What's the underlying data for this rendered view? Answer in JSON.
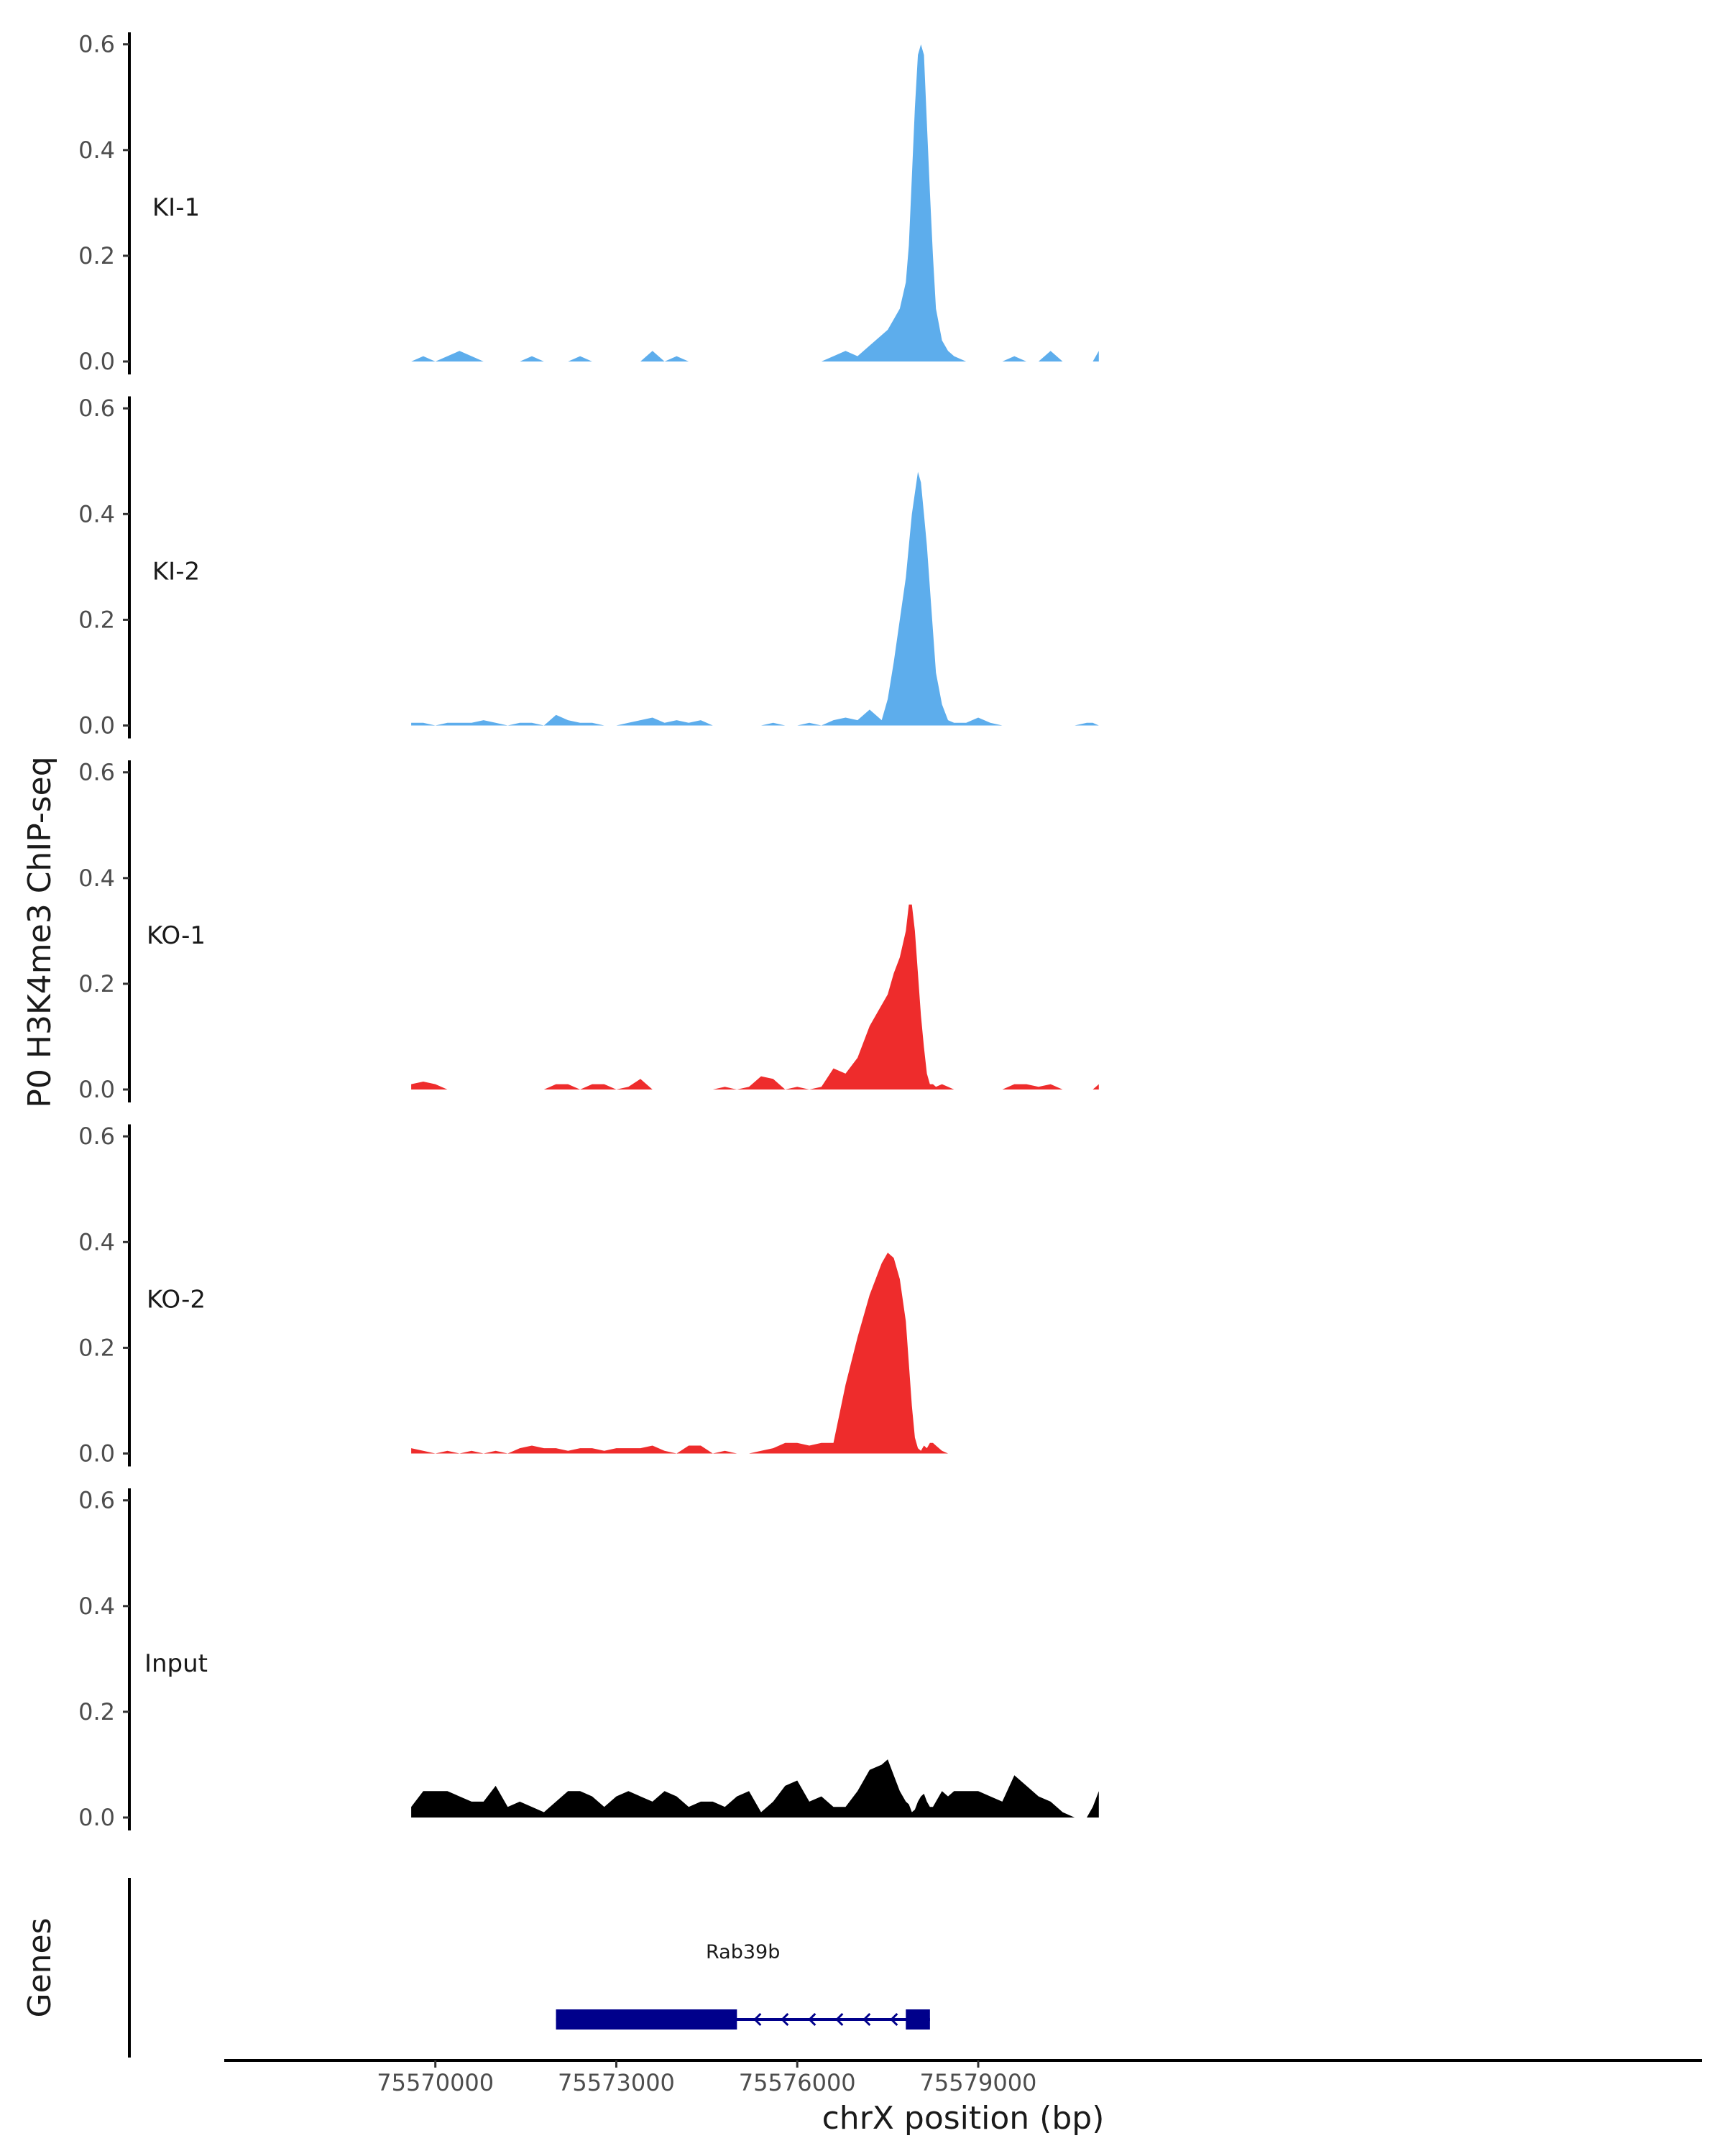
{
  "chart_data": {
    "type": "area",
    "ylabel": "P0 H3K4me3 ChIP-seq",
    "xlabel": "chrX position (bp)",
    "xlim": [
      75566500,
      75591000
    ],
    "x_ticks": [
      75570000,
      75573000,
      75576000,
      75579000
    ],
    "x_tick_labels": [
      "75570000",
      "75573000",
      "75576000",
      "75579000"
    ],
    "ylim": [
      0,
      0.62
    ],
    "y_ticks": [
      0.0,
      0.2,
      0.4,
      0.6
    ],
    "y_tick_labels": [
      "0.0",
      "0.2",
      "0.4",
      "0.6"
    ],
    "genes_label": "Genes",
    "gene": {
      "name": "Rab39b",
      "start": 75572000,
      "end": 75578200,
      "strand": "-",
      "exons": [
        [
          75572000,
          75575000
        ],
        [
          75577800,
          75578200
        ]
      ],
      "color": "#00008B"
    },
    "series": [
      {
        "name": "KI-1",
        "color": "#5DADEC",
        "x": [
          75569600,
          75569800,
          75570000,
          75570200,
          75570400,
          75570600,
          75570800,
          75571000,
          75571200,
          75571400,
          75571600,
          75571800,
          75572000,
          75572200,
          75572400,
          75572600,
          75572800,
          75573000,
          75573200,
          75573400,
          75573600,
          75573800,
          75574000,
          75574200,
          75574400,
          75574600,
          75574800,
          75575000,
          75575200,
          75575400,
          75575600,
          75575800,
          75576000,
          75576200,
          75576400,
          75576600,
          75576800,
          75577000,
          75577200,
          75577400,
          75577500,
          75577600,
          75577700,
          75577800,
          75577850,
          75577900,
          75577950,
          75578000,
          75578050,
          75578100,
          75578150,
          75578200,
          75578250,
          75578300,
          75578400,
          75578500,
          75578600,
          75578800,
          75579000,
          75579200,
          75579400,
          75579600,
          75579800,
          75580000,
          75580200,
          75580400,
          75580600,
          75580800,
          75580900,
          75581000
        ],
        "values": [
          0,
          0.01,
          0,
          0.01,
          0.02,
          0.01,
          0,
          0,
          0,
          0,
          0.01,
          0,
          0,
          0,
          0.01,
          0,
          0,
          0,
          0,
          0,
          0.02,
          0,
          0.01,
          0,
          0,
          0,
          0,
          0,
          0,
          0,
          0,
          0,
          0,
          0,
          0,
          0.01,
          0.02,
          0.01,
          0.03,
          0.05,
          0.06,
          0.08,
          0.1,
          0.15,
          0.22,
          0.35,
          0.48,
          0.58,
          0.6,
          0.58,
          0.45,
          0.32,
          0.2,
          0.1,
          0.04,
          0.02,
          0.01,
          0,
          0,
          0,
          0,
          0.01,
          0,
          0,
          0.02,
          0,
          0,
          0,
          0,
          0.02
        ]
      },
      {
        "name": "KI-2",
        "color": "#5DADEC",
        "x": [
          75569600,
          75569800,
          75570000,
          75570200,
          75570400,
          75570600,
          75570800,
          75571000,
          75571200,
          75571400,
          75571600,
          75571800,
          75572000,
          75572200,
          75572400,
          75572600,
          75572800,
          75573000,
          75573200,
          75573400,
          75573600,
          75573800,
          75574000,
          75574200,
          75574400,
          75574600,
          75574800,
          75575000,
          75575200,
          75575400,
          75575600,
          75575800,
          75576000,
          75576200,
          75576400,
          75576600,
          75576800,
          75577000,
          75577200,
          75577400,
          75577500,
          75577600,
          75577700,
          75577800,
          75577850,
          75577900,
          75577950,
          75578000,
          75578050,
          75578100,
          75578150,
          75578200,
          75578250,
          75578300,
          75578400,
          75578500,
          75578600,
          75578800,
          75579000,
          75579200,
          75579400,
          75579600,
          75579800,
          75580000,
          75580200,
          75580400,
          75580600,
          75580800,
          75580900,
          75581000
        ],
        "values": [
          0.005,
          0.005,
          0,
          0.005,
          0.005,
          0.005,
          0.01,
          0.005,
          0,
          0.005,
          0.005,
          0,
          0.02,
          0.01,
          0.005,
          0.005,
          0,
          0,
          0.005,
          0.01,
          0.015,
          0.005,
          0.01,
          0.005,
          0.01,
          0,
          0,
          0,
          0,
          0,
          0.005,
          0,
          0,
          0.005,
          0,
          0.01,
          0.015,
          0.01,
          0.03,
          0.01,
          0.05,
          0.12,
          0.2,
          0.28,
          0.34,
          0.4,
          0.44,
          0.48,
          0.46,
          0.4,
          0.34,
          0.26,
          0.18,
          0.1,
          0.04,
          0.01,
          0.005,
          0.005,
          0.015,
          0.005,
          0,
          0,
          0,
          0,
          0,
          0,
          0,
          0.005,
          0.005,
          0
        ]
      },
      {
        "name": "KO-1",
        "color": "#EE2C2C",
        "x": [
          75569600,
          75569800,
          75570000,
          75570200,
          75570400,
          75570600,
          75570800,
          75571000,
          75571200,
          75571400,
          75571600,
          75571800,
          75572000,
          75572200,
          75572400,
          75572600,
          75572800,
          75573000,
          75573200,
          75573400,
          75573600,
          75573800,
          75574000,
          75574200,
          75574400,
          75574600,
          75574800,
          75575000,
          75575200,
          75575400,
          75575600,
          75575800,
          75576000,
          75576200,
          75576400,
          75576600,
          75576800,
          75577000,
          75577200,
          75577400,
          75577500,
          75577600,
          75577700,
          75577800,
          75577850,
          75577900,
          75577950,
          75578000,
          75578050,
          75578100,
          75578150,
          75578200,
          75578250,
          75578300,
          75578400,
          75578500,
          75578600,
          75578800,
          75579000,
          75579200,
          75579400,
          75579600,
          75579800,
          75580000,
          75580200,
          75580400,
          75580600,
          75580800,
          75580900,
          75581000
        ],
        "values": [
          0.01,
          0.015,
          0.01,
          0,
          0,
          0,
          0,
          0,
          0,
          0,
          0,
          0,
          0.01,
          0.01,
          0,
          0.01,
          0.01,
          0,
          0.005,
          0.02,
          0,
          0,
          0,
          0,
          0,
          0,
          0.005,
          0,
          0.005,
          0.025,
          0.02,
          0,
          0.005,
          0,
          0.005,
          0.04,
          0.03,
          0.06,
          0.12,
          0.16,
          0.18,
          0.22,
          0.25,
          0.3,
          0.35,
          0.35,
          0.3,
          0.22,
          0.14,
          0.08,
          0.03,
          0.01,
          0.01,
          0.005,
          0.01,
          0.005,
          0,
          0,
          0,
          0,
          0,
          0.01,
          0.01,
          0.005,
          0.01,
          0,
          0,
          0,
          0,
          0.01
        ]
      },
      {
        "name": "KO-2",
        "color": "#EE2C2C",
        "x": [
          75569600,
          75569800,
          75570000,
          75570200,
          75570400,
          75570600,
          75570800,
          75571000,
          75571200,
          75571400,
          75571600,
          75571800,
          75572000,
          75572200,
          75572400,
          75572600,
          75572800,
          75573000,
          75573200,
          75573400,
          75573600,
          75573800,
          75574000,
          75574200,
          75574400,
          75574600,
          75574800,
          75575000,
          75575200,
          75575400,
          75575600,
          75575800,
          75576000,
          75576200,
          75576400,
          75576600,
          75576800,
          75577000,
          75577200,
          75577400,
          75577500,
          75577600,
          75577700,
          75577800,
          75577850,
          75577900,
          75577950,
          75578000,
          75578050,
          75578100,
          75578150,
          75578200,
          75578250,
          75578300,
          75578400,
          75578500,
          75578600,
          75578800,
          75579000,
          75579200,
          75579400,
          75579600,
          75579800,
          75580000,
          75580200,
          75580400,
          75580600,
          75580800,
          75580900,
          75581000
        ],
        "values": [
          0.01,
          0.005,
          0,
          0.005,
          0,
          0.005,
          0,
          0.005,
          0,
          0.01,
          0.015,
          0.01,
          0.01,
          0.005,
          0.01,
          0.01,
          0.005,
          0.01,
          0.01,
          0.01,
          0.015,
          0.005,
          0,
          0.015,
          0.015,
          0,
          0.005,
          0,
          0,
          0.005,
          0.01,
          0.02,
          0.02,
          0.015,
          0.02,
          0.02,
          0.13,
          0.22,
          0.3,
          0.36,
          0.38,
          0.37,
          0.33,
          0.25,
          0.17,
          0.09,
          0.03,
          0.01,
          0.005,
          0.015,
          0.01,
          0.02,
          0.02,
          0.015,
          0.005,
          0,
          0,
          0,
          0,
          0,
          0,
          0,
          0,
          0,
          0,
          0,
          0,
          0,
          0,
          0
        ]
      },
      {
        "name": "Input",
        "color": "#000000",
        "x": [
          75569600,
          75569800,
          75570000,
          75570200,
          75570400,
          75570600,
          75570800,
          75571000,
          75571200,
          75571400,
          75571600,
          75571800,
          75572000,
          75572200,
          75572400,
          75572600,
          75572800,
          75573000,
          75573200,
          75573400,
          75573600,
          75573800,
          75574000,
          75574200,
          75574400,
          75574600,
          75574800,
          75575000,
          75575200,
          75575400,
          75575600,
          75575800,
          75576000,
          75576200,
          75576400,
          75576600,
          75576800,
          75577000,
          75577200,
          75577400,
          75577500,
          75577600,
          75577700,
          75577800,
          75577850,
          75577900,
          75577950,
          75578000,
          75578050,
          75578100,
          75578150,
          75578200,
          75578250,
          75578300,
          75578400,
          75578500,
          75578600,
          75578800,
          75579000,
          75579200,
          75579400,
          75579600,
          75579800,
          75580000,
          75580200,
          75580400,
          75580600,
          75580800,
          75580900,
          75581000
        ],
        "values": [
          0.02,
          0.05,
          0.05,
          0.05,
          0.04,
          0.03,
          0.03,
          0.06,
          0.02,
          0.03,
          0.02,
          0.01,
          0.03,
          0.05,
          0.05,
          0.04,
          0.02,
          0.04,
          0.05,
          0.04,
          0.03,
          0.05,
          0.04,
          0.02,
          0.03,
          0.03,
          0.02,
          0.04,
          0.05,
          0.01,
          0.03,
          0.06,
          0.07,
          0.03,
          0.04,
          0.02,
          0.02,
          0.05,
          0.09,
          0.1,
          0.11,
          0.08,
          0.05,
          0.03,
          0.025,
          0.01,
          0.015,
          0.03,
          0.04,
          0.045,
          0.03,
          0.02,
          0.02,
          0.03,
          0.05,
          0.04,
          0.05,
          0.05,
          0.05,
          0.04,
          0.03,
          0.08,
          0.06,
          0.04,
          0.03,
          0.01,
          0,
          0,
          0.02,
          0.05
        ]
      }
    ]
  }
}
